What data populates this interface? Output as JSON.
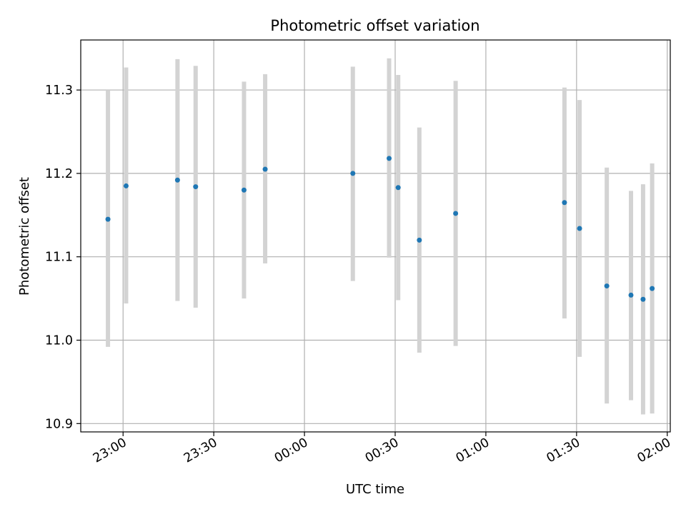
{
  "chart_data": {
    "type": "scatter",
    "title": "Photometric offset variation",
    "xlabel": "UTC time",
    "ylabel": "Photometric offset",
    "x_ticks": [
      {
        "min": -60,
        "label": "23:00"
      },
      {
        "min": -30,
        "label": "23:30"
      },
      {
        "min": 0,
        "label": "00:00"
      },
      {
        "min": 30,
        "label": "00:30"
      },
      {
        "min": 60,
        "label": "01:00"
      },
      {
        "min": 90,
        "label": "01:30"
      },
      {
        "min": 120,
        "label": "02:00"
      }
    ],
    "y_ticks": [
      "10.9",
      "11.0",
      "11.1",
      "11.2",
      "11.3"
    ],
    "xlim": [
      "22:46",
      "02:01"
    ],
    "ylim": [
      10.89,
      11.36
    ],
    "grid": true,
    "colors": {
      "marker": "#1f77b4",
      "errorbar": "#d3d3d3",
      "grid": "#b0b0b0"
    },
    "points": [
      {
        "time": "22:55",
        "y": 11.145,
        "ylow": 10.992,
        "yhigh": 11.3
      },
      {
        "time": "23:01",
        "y": 11.185,
        "ylow": 11.044,
        "yhigh": 11.327
      },
      {
        "time": "23:18",
        "y": 11.192,
        "ylow": 11.047,
        "yhigh": 11.337
      },
      {
        "time": "23:24",
        "y": 11.184,
        "ylow": 11.039,
        "yhigh": 11.329
      },
      {
        "time": "23:40",
        "y": 11.18,
        "ylow": 11.05,
        "yhigh": 11.31
      },
      {
        "time": "23:47",
        "y": 11.205,
        "ylow": 11.092,
        "yhigh": 11.319
      },
      {
        "time": "00:16",
        "y": 11.2,
        "ylow": 11.071,
        "yhigh": 11.328
      },
      {
        "time": "00:28",
        "y": 11.218,
        "ylow": 11.099,
        "yhigh": 11.338
      },
      {
        "time": "00:31",
        "y": 11.183,
        "ylow": 11.048,
        "yhigh": 11.318
      },
      {
        "time": "00:38",
        "y": 11.12,
        "ylow": 10.985,
        "yhigh": 11.255
      },
      {
        "time": "00:50",
        "y": 11.152,
        "ylow": 10.993,
        "yhigh": 11.311
      },
      {
        "time": "01:26",
        "y": 11.165,
        "ylow": 11.026,
        "yhigh": 11.303
      },
      {
        "time": "01:31",
        "y": 11.134,
        "ylow": 10.98,
        "yhigh": 11.288
      },
      {
        "time": "01:40",
        "y": 11.065,
        "ylow": 10.924,
        "yhigh": 11.207
      },
      {
        "time": "01:48",
        "y": 11.054,
        "ylow": 10.928,
        "yhigh": 11.179
      },
      {
        "time": "01:52",
        "y": 11.049,
        "ylow": 10.911,
        "yhigh": 11.187
      },
      {
        "time": "01:55",
        "y": 11.062,
        "ylow": 10.912,
        "yhigh": 11.212
      }
    ]
  }
}
